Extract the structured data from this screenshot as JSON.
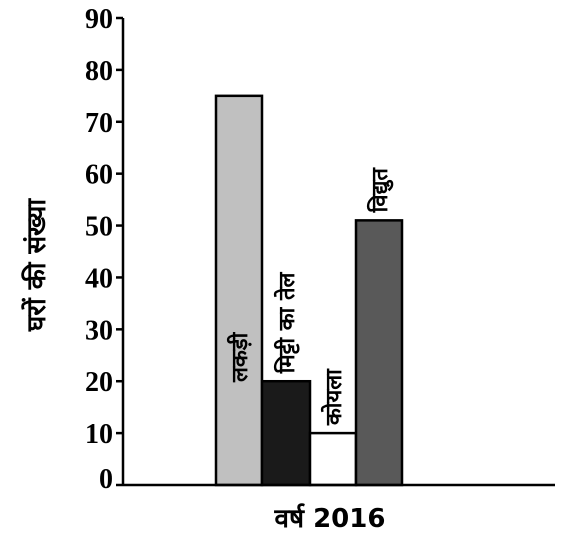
{
  "chart_data": {
    "type": "bar",
    "categories": [
      "लकड़ी",
      "मिट्टी का तेल",
      "कोयला",
      "विद्युत"
    ],
    "values": [
      75,
      20,
      10,
      51
    ],
    "colors": [
      "#c0c0c0",
      "#1a1a1a",
      "#ffffff",
      "#595959"
    ],
    "xlabel": "वर्ष 2016",
    "ylabel": "घरों की संख्या",
    "ylim": [
      0,
      90
    ],
    "yticks": [
      "0",
      "10",
      "20",
      "30",
      "40",
      "50",
      "60",
      "70",
      "80",
      "90"
    ],
    "grid": false
  }
}
